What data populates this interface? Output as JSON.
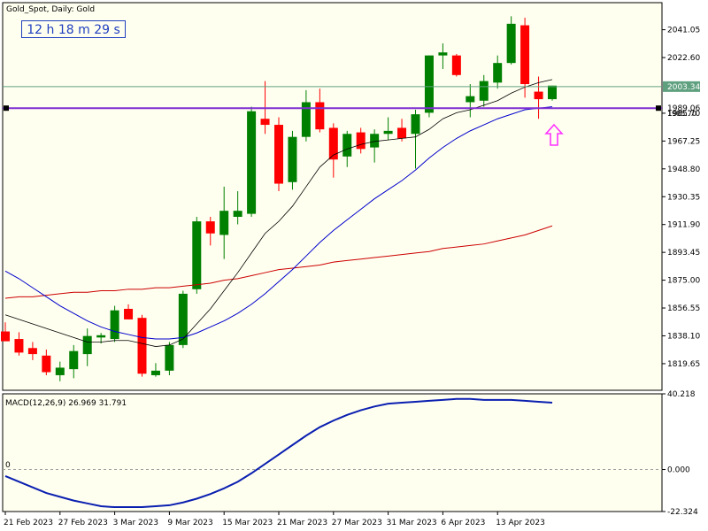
{
  "header": {
    "symbol_line": "Gold_Spot, Daily:  Gold",
    "timer": "12 h 18 m 29 s"
  },
  "colors": {
    "background": "#fffff0",
    "bull": "#008000",
    "bear": "#ff0000",
    "ma_fast": "#000000",
    "ma_mid": "#0000cc",
    "ma_slow": "#cc0000",
    "level": "#7f2fd1",
    "bid": "#5fa07f",
    "arrow": "#ff33ff",
    "macd": "#0a1fb0"
  },
  "chart_data": [
    {
      "type": "candlestick",
      "title": "Gold_Spot, Daily:  Gold",
      "ylim": [
        1802,
        2059
      ],
      "y_ticks": [
        "2041.05",
        "2022.60",
        "2003.34",
        "1989.06",
        "1985.70",
        "1967.25",
        "1948.80",
        "1930.35",
        "1911.90",
        "1893.45",
        "1875.00",
        "1856.55",
        "1838.10",
        "1819.65"
      ],
      "x_tick_labels": [
        "21 Feb 2023",
        "27 Feb 2023",
        "3 Mar 2023",
        "9 Mar 2023",
        "15 Mar 2023",
        "21 Mar 2023",
        "27 Mar 2023",
        "31 Mar 2023",
        "6 Apr 2023",
        "13 Apr 2023"
      ],
      "bid_price": 2003.34,
      "level_price": 1989.06,
      "candles": [
        {
          "o": 1841.0,
          "h": 1847.0,
          "l": 1836.0,
          "c": 1834.5
        },
        {
          "o": 1836.0,
          "h": 1840.5,
          "l": 1825.0,
          "c": 1827.0
        },
        {
          "o": 1830.0,
          "h": 1834.0,
          "l": 1822.0,
          "c": 1826.0
        },
        {
          "o": 1825.0,
          "h": 1829.0,
          "l": 1812.0,
          "c": 1814.0
        },
        {
          "o": 1812.0,
          "h": 1821.0,
          "l": 1808.0,
          "c": 1817.0
        },
        {
          "o": 1816.0,
          "h": 1832.0,
          "l": 1810.0,
          "c": 1828.0
        },
        {
          "o": 1826.0,
          "h": 1843.0,
          "l": 1818.0,
          "c": 1838.0
        },
        {
          "o": 1837.0,
          "h": 1840.0,
          "l": 1833.0,
          "c": 1838.5
        },
        {
          "o": 1836.0,
          "h": 1858.0,
          "l": 1834.0,
          "c": 1855.0
        },
        {
          "o": 1856.0,
          "h": 1859.0,
          "l": 1849.0,
          "c": 1849.0
        },
        {
          "o": 1850.0,
          "h": 1852.0,
          "l": 1811.0,
          "c": 1813.0
        },
        {
          "o": 1812.0,
          "h": 1820.0,
          "l": 1811.0,
          "c": 1815.0
        },
        {
          "o": 1815.0,
          "h": 1834.0,
          "l": 1812.0,
          "c": 1832.0
        },
        {
          "o": 1832.0,
          "h": 1868.0,
          "l": 1830.0,
          "c": 1866.0
        },
        {
          "o": 1869.0,
          "h": 1917.0,
          "l": 1866.0,
          "c": 1914.0
        },
        {
          "o": 1914.0,
          "h": 1917.0,
          "l": 1898.0,
          "c": 1906.0
        },
        {
          "o": 1905.0,
          "h": 1937.0,
          "l": 1889.0,
          "c": 1921.0
        },
        {
          "o": 1917.0,
          "h": 1934.0,
          "l": 1912.0,
          "c": 1921.0
        },
        {
          "o": 1919.0,
          "h": 1990.0,
          "l": 1917.0,
          "c": 1987.0
        },
        {
          "o": 1982.0,
          "h": 2007.0,
          "l": 1972.0,
          "c": 1978.0
        },
        {
          "o": 1978.0,
          "h": 1983.0,
          "l": 1934.0,
          "c": 1939.0
        },
        {
          "o": 1940.0,
          "h": 1974.0,
          "l": 1935.0,
          "c": 1970.0
        },
        {
          "o": 1970.0,
          "h": 2001.0,
          "l": 1967.0,
          "c": 1993.0
        },
        {
          "o": 1993.0,
          "h": 2002.0,
          "l": 1973.0,
          "c": 1975.0
        },
        {
          "o": 1976.0,
          "h": 1979.0,
          "l": 1943.0,
          "c": 1955.0
        },
        {
          "o": 1957.0,
          "h": 1974.0,
          "l": 1950.0,
          "c": 1972.0
        },
        {
          "o": 1973.0,
          "h": 1976.0,
          "l": 1959.0,
          "c": 1962.0
        },
        {
          "o": 1963.0,
          "h": 1975.0,
          "l": 1953.0,
          "c": 1972.0
        },
        {
          "o": 1972.0,
          "h": 1983.0,
          "l": 1968.0,
          "c": 1974.0
        },
        {
          "o": 1976.0,
          "h": 1982.0,
          "l": 1967.0,
          "c": 1969.0
        },
        {
          "o": 1972.0,
          "h": 1988.0,
          "l": 1949.0,
          "c": 1985.0
        },
        {
          "o": 1986.0,
          "h": 2024.0,
          "l": 1983.0,
          "c": 2024.0
        },
        {
          "o": 2024.0,
          "h": 2032.0,
          "l": 2015.0,
          "c": 2026.0
        },
        {
          "o": 2024.0,
          "h": 2025.0,
          "l": 2010.0,
          "c": 2011.0
        },
        {
          "o": 1993.0,
          "h": 2005.0,
          "l": 1983.0,
          "c": 1997.0
        },
        {
          "o": 1994.0,
          "h": 2011.0,
          "l": 1990.0,
          "c": 2007.0
        },
        {
          "o": 2006.0,
          "h": 2024.0,
          "l": 2002.0,
          "c": 2019.0
        },
        {
          "o": 2019.0,
          "h": 2050.0,
          "l": 2018.0,
          "c": 2045.0
        },
        {
          "o": 2044.0,
          "h": 2049.0,
          "l": 1996.0,
          "c": 2005.0
        },
        {
          "o": 2000.0,
          "h": 2010.0,
          "l": 1982.0,
          "c": 1995.0
        },
        {
          "o": 1995.0,
          "h": 2004.0,
          "l": 1994.0,
          "c": 2004.0
        }
      ],
      "ma_fast": [
        1852,
        1849,
        1846,
        1843,
        1840,
        1837,
        1834,
        1834,
        1835,
        1835,
        1833,
        1831,
        1832,
        1836,
        1846,
        1856,
        1868,
        1880,
        1893,
        1906,
        1914,
        1924,
        1937,
        1950,
        1958,
        1962,
        1965,
        1967,
        1968,
        1969,
        1970,
        1975,
        1982,
        1986,
        1988,
        1991,
        1994,
        1999,
        2003,
        2006,
        2008
      ],
      "ma_mid": [
        1881,
        1876,
        1870,
        1864,
        1858,
        1853,
        1848,
        1844,
        1841,
        1839,
        1837,
        1836,
        1836,
        1837,
        1840,
        1844,
        1848,
        1853,
        1859,
        1866,
        1874,
        1882,
        1891,
        1900,
        1908,
        1915,
        1922,
        1929,
        1935,
        1941,
        1948,
        1956,
        1963,
        1969,
        1974,
        1978,
        1982,
        1985,
        1988,
        1989,
        1990
      ],
      "ma_slow": [
        1863,
        1864,
        1864,
        1865,
        1866,
        1867,
        1867,
        1868,
        1868,
        1869,
        1869,
        1870,
        1870,
        1871,
        1872,
        1873,
        1875,
        1876,
        1878,
        1880,
        1882,
        1883,
        1884,
        1885,
        1887,
        1888,
        1889,
        1890,
        1891,
        1892,
        1893,
        1894,
        1896,
        1897,
        1898,
        1899,
        1901,
        1903,
        1905,
        1908,
        1911
      ]
    },
    {
      "type": "line",
      "title": "MACD(12,26,9) 26.969 31.791",
      "ylim": [
        -22.324,
        40.218
      ],
      "y_ticks": [
        "40.218",
        "0.000",
        "-22.324"
      ],
      "zero_label": "0",
      "series": [
        {
          "values": [
            -3.5,
            -6.5,
            -9.5,
            -12.5,
            -14.5,
            -16.5,
            -18.0,
            -19.5,
            -20.0,
            -20.0,
            -20.0,
            -19.5,
            -19.0,
            -17.5,
            -15.5,
            -13.0,
            -10.0,
            -6.5,
            -2.0,
            3.0,
            8.0,
            13.0,
            18.0,
            22.5,
            26.0,
            29.0,
            31.5,
            33.5,
            35.0,
            35.5,
            36.0,
            36.5,
            37.0,
            37.5,
            37.5,
            37.0,
            37.0,
            37.0,
            36.5,
            36.0,
            35.5
          ]
        }
      ]
    }
  ]
}
